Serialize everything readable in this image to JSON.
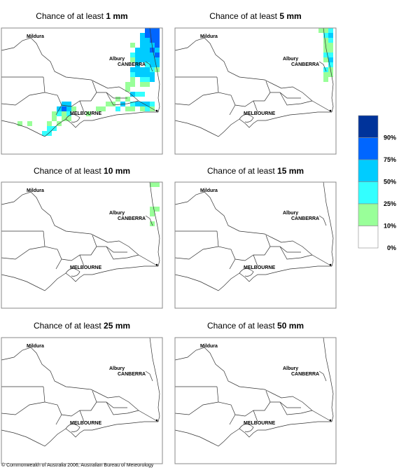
{
  "panels": [
    {
      "title": "Chance of at least ",
      "amount": "1 mm"
    },
    {
      "title": "Chance of at least ",
      "amount": "5 mm"
    },
    {
      "title": "Chance of at least ",
      "amount": "10 mm"
    },
    {
      "title": "Chance of at least ",
      "amount": "15 mm"
    },
    {
      "title": "Chance of at least ",
      "amount": "25 mm"
    },
    {
      "title": "Chance of at least ",
      "amount": "50 mm"
    }
  ],
  "cities": [
    "Mildura",
    "CANBERRA",
    "Albury",
    "MELBOURNE"
  ],
  "legend": {
    "labels": [
      "90%",
      "75%",
      "50%",
      "25%",
      "10%",
      "0%"
    ]
  },
  "footer": "© Commonwealth of Australia 2006, Australian Bureau of Meteorology"
}
